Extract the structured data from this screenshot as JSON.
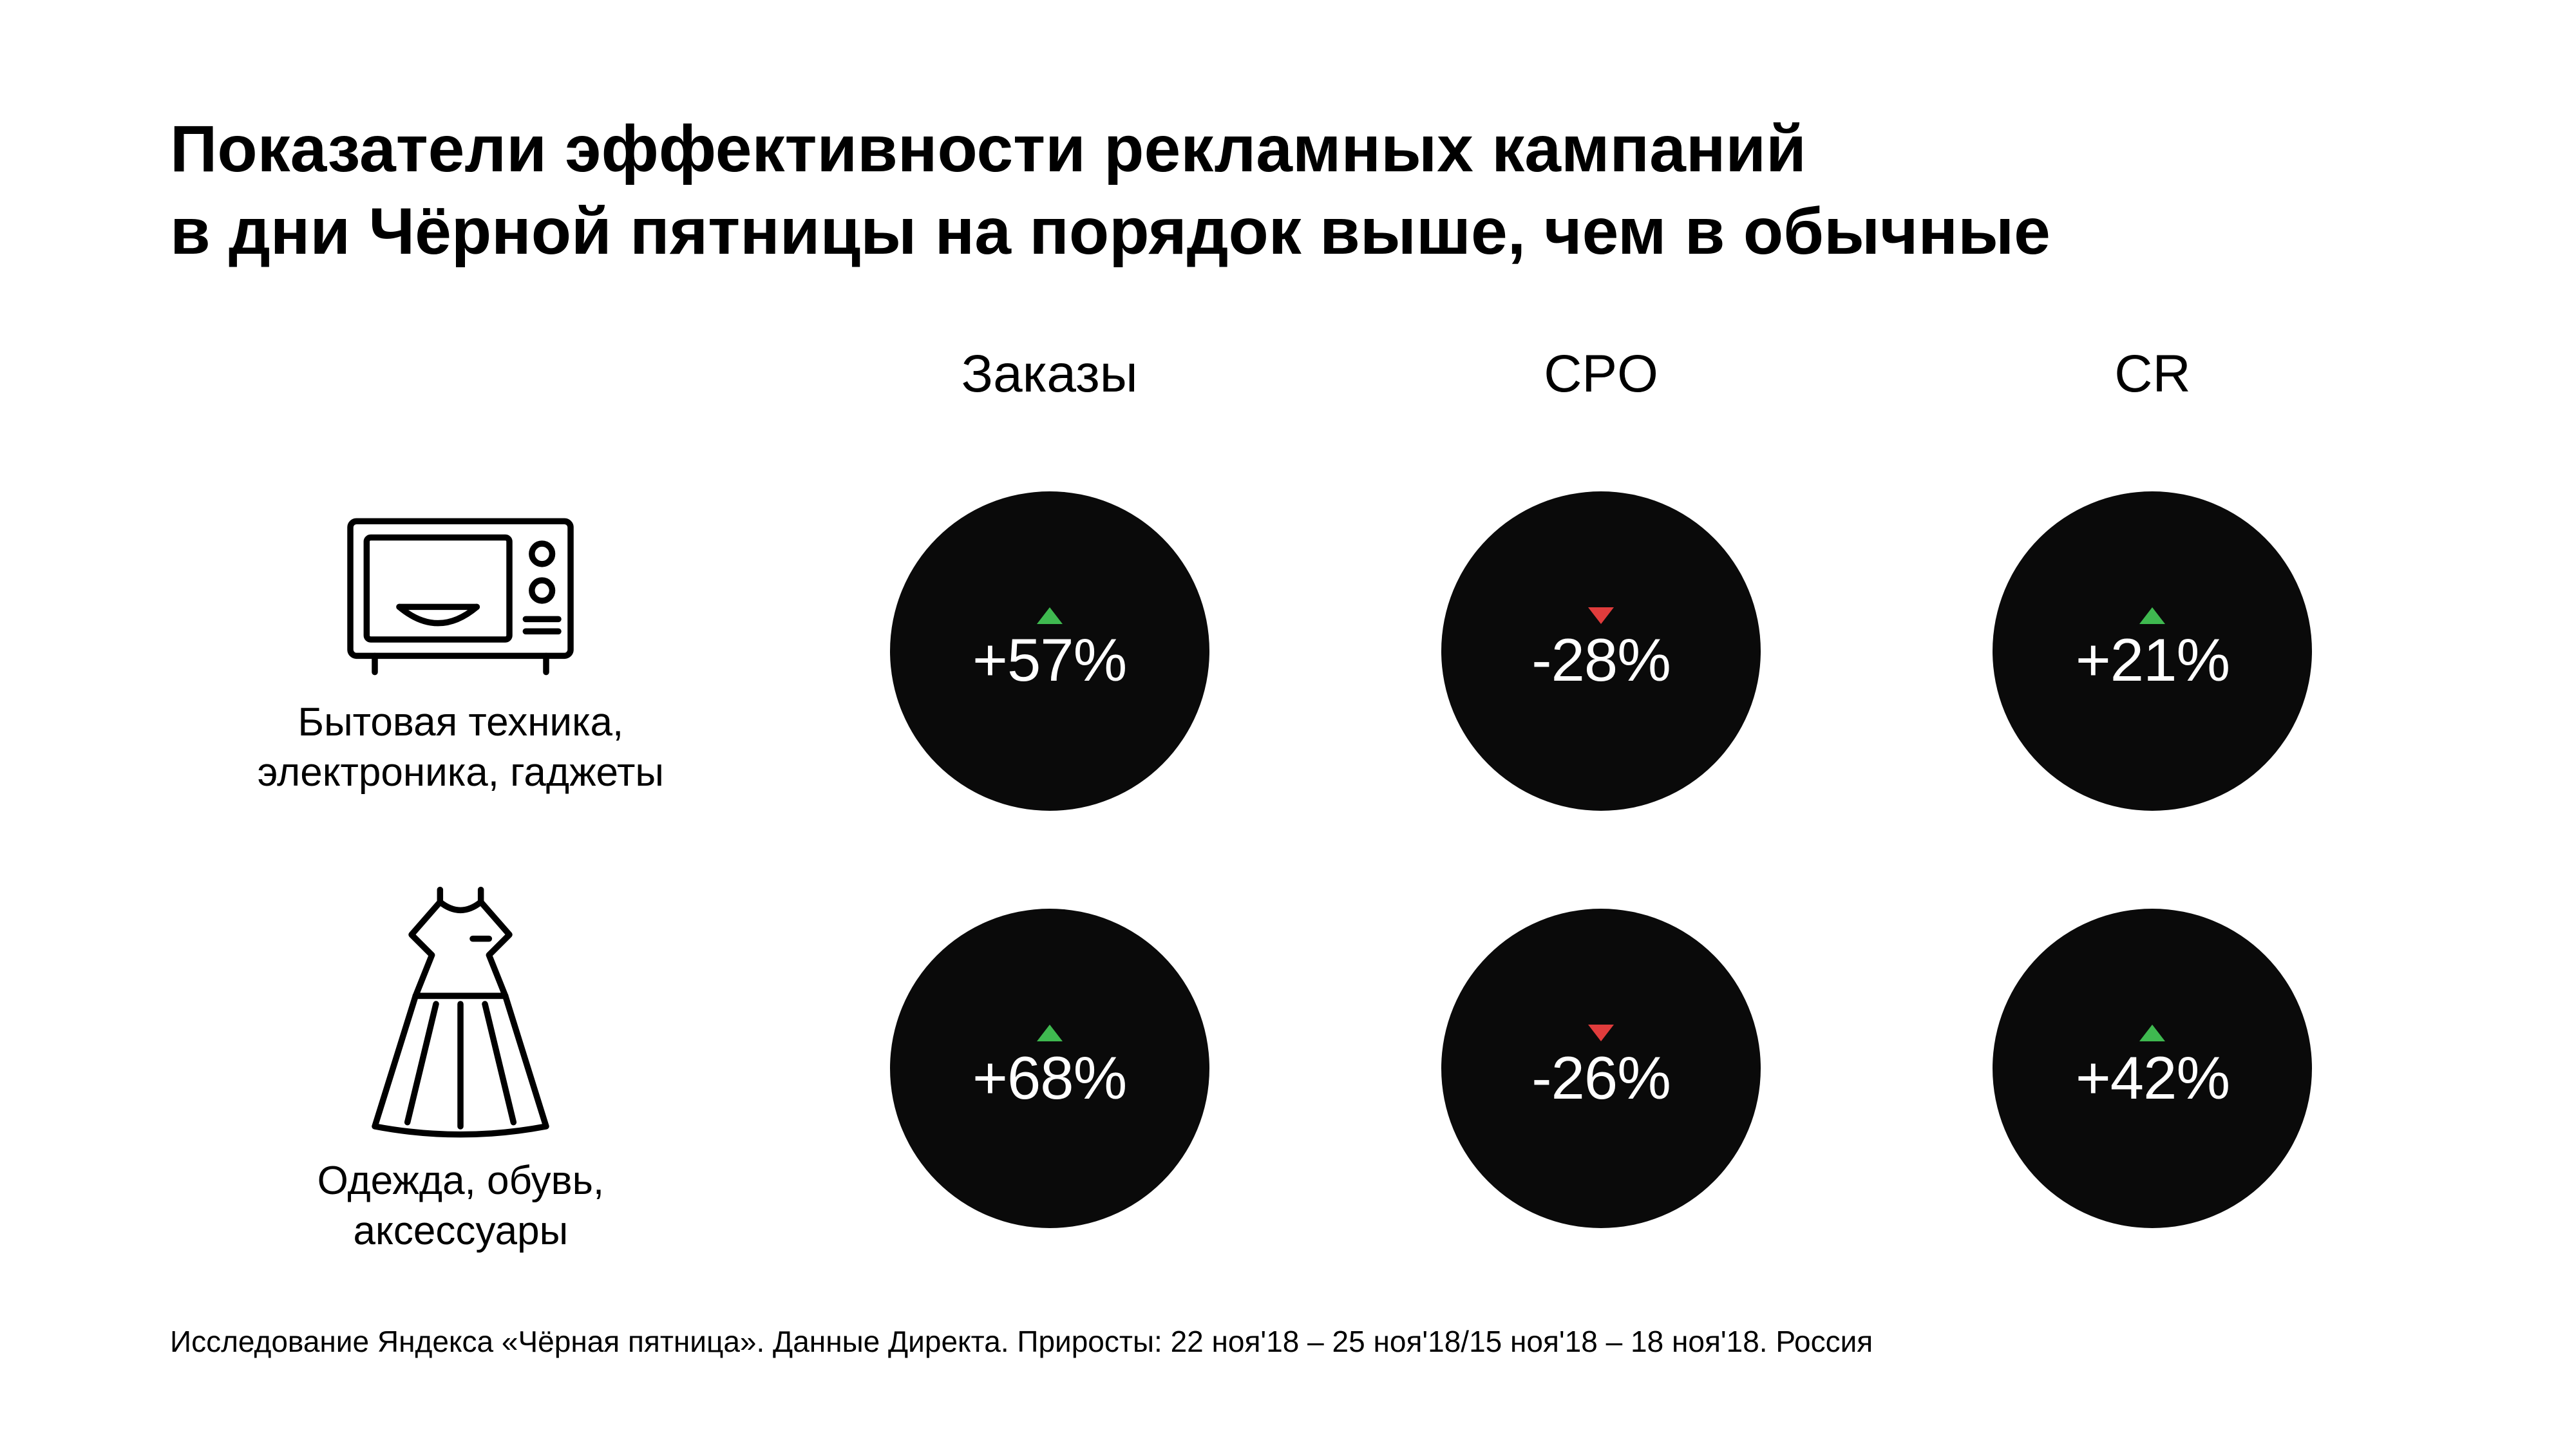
{
  "title": "Показатели эффективности рекламных кампаний\nв дни Чёрной пятницы на порядок выше, чем в обычные",
  "columns": [
    {
      "key": "orders",
      "label": "Заказы"
    },
    {
      "key": "cpo",
      "label": "CPO"
    },
    {
      "key": "cr",
      "label": "CR"
    }
  ],
  "rows": [
    {
      "key": "electronics",
      "label": "Бытовая техника,\nэлектроника, гаджеты",
      "icon": "microwave",
      "metrics": {
        "orders": {
          "value": "+57%",
          "direction": "up",
          "arrow_color": "#3fb950"
        },
        "cpo": {
          "value": "-28%",
          "direction": "down",
          "arrow_color": "#e03c3c"
        },
        "cr": {
          "value": "+21%",
          "direction": "up",
          "arrow_color": "#3fb950"
        }
      }
    },
    {
      "key": "fashion",
      "label": "Одежда, обувь,\nаксессуары",
      "icon": "dress",
      "metrics": {
        "orders": {
          "value": "+68%",
          "direction": "up",
          "arrow_color": "#3fb950"
        },
        "cpo": {
          "value": "-26%",
          "direction": "down",
          "arrow_color": "#e03c3c"
        },
        "cr": {
          "value": "+42%",
          "direction": "up",
          "arrow_color": "#3fb950"
        }
      }
    }
  ],
  "style": {
    "background_color": "#ffffff",
    "title_color": "#000000",
    "title_fontsize_pt": 36,
    "title_weight": 700,
    "column_header_fontsize_pt": 28,
    "row_label_fontsize_pt": 22,
    "value_fontsize_pt": 32,
    "value_color": "#ffffff",
    "circle_background": "#0a0a0a",
    "circle_diameter_rel": 0.124,
    "footnote_color": "#000000",
    "footnote_fontsize_pt": 16,
    "icon_stroke": "#000000",
    "up_color": "#3fb950",
    "down_color": "#e03c3c"
  },
  "footnote": "Исследование Яндекса «Чёрная пятница». Данные Директа. Приросты: 22 ноя'18 – 25 ноя'18/15 ноя'18 – 18 ноя'18. Россия"
}
